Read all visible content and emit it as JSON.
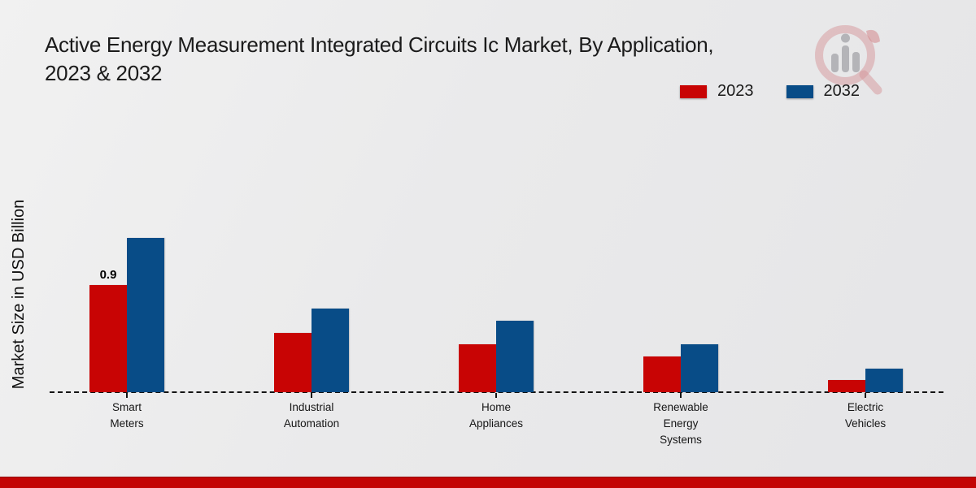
{
  "title": {
    "line1": "Active Energy Measurement Integrated Circuits Ic Market, By Application,",
    "line2": "2023 & 2032"
  },
  "y_axis_label": "Market Size in USD Billion",
  "legend": {
    "items": [
      {
        "label": "2023",
        "color": "#c80404"
      },
      {
        "label": "2032",
        "color": "#084c87"
      }
    ]
  },
  "watermark_icon": "magnifier-bar-chart-icon",
  "footer": {
    "bar_color": "#c30505"
  },
  "chart_data": {
    "type": "bar",
    "title": "Active Energy Measurement Integrated Circuits Ic Market, By Application, 2023 & 2032",
    "xlabel": "",
    "ylabel": "Market Size in USD Billion",
    "categories": [
      "Smart Meters",
      "Industrial Automation",
      "Home Appliances",
      "Renewable Energy Systems",
      "Electric Vehicles"
    ],
    "category_display_lines": [
      [
        "Smart",
        "Meters"
      ],
      [
        "Industrial",
        "Automation"
      ],
      [
        "Home",
        "Appliances"
      ],
      [
        "Renewable",
        "Energy",
        "Systems"
      ],
      [
        "Electric",
        "Vehicles"
      ]
    ],
    "series": [
      {
        "name": "2023",
        "color": "#c80404",
        "values": [
          0.9,
          0.5,
          0.4,
          0.3,
          0.1
        ]
      },
      {
        "name": "2032",
        "color": "#084c87",
        "values": [
          1.3,
          0.7,
          0.6,
          0.4,
          0.2
        ]
      }
    ],
    "bar_value_labels": [
      {
        "series": "2023",
        "category": "Smart Meters",
        "text": "0.9"
      }
    ],
    "ylim": [
      0,
      1.4
    ],
    "grid": false,
    "baseline_style": "dashed",
    "legend_position": "top-right",
    "units": "USD Billion"
  }
}
